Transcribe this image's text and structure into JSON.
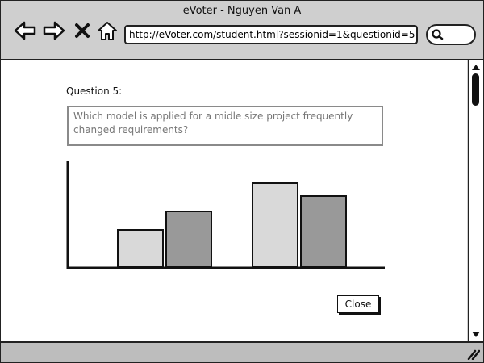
{
  "window": {
    "title": "eVoter - Nguyen Van A"
  },
  "toolbar": {
    "icons": [
      "back-arrow-icon",
      "forward-arrow-icon",
      "close-x-icon",
      "home-icon",
      "search-icon"
    ],
    "url": "http://eVoter.com/student.html?sessionid=1&questionid=5"
  },
  "question": {
    "label": "Question 5:",
    "text": "Which model is applied for a midle size project frequently changed requirements?"
  },
  "chart_data": {
    "type": "bar",
    "categories": [
      "",
      ""
    ],
    "series": [
      {
        "color": "#d9d9d9",
        "values": [
          46,
          104
        ]
      },
      {
        "color": "#999999",
        "values": [
          69,
          88
        ]
      }
    ],
    "ylim": [
      0,
      133
    ],
    "grid": false,
    "legend": "none"
  },
  "actions": {
    "close_label": "Close"
  }
}
